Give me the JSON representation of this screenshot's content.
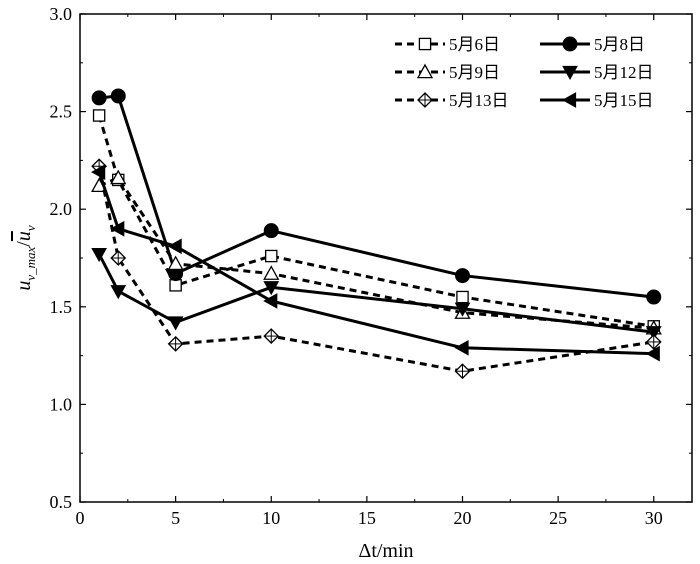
{
  "chart_data": {
    "type": "line",
    "xlabel": "Δt/min",
    "ylabel_parts": {
      "base": "u",
      "sub": "v_max",
      "bar_base": "u",
      "bar_sub": "v"
    },
    "xlim": [
      0,
      32
    ],
    "ylim": [
      0.5,
      3.0
    ],
    "xticks": [
      0,
      5,
      10,
      15,
      20,
      25,
      30
    ],
    "yticks": [
      0.5,
      1.0,
      1.5,
      2.0,
      2.5,
      3.0
    ],
    "ytick_labels": [
      "0.5",
      "1.0",
      "1.5",
      "2.0",
      "2.5",
      "3.0"
    ],
    "legend_position": "top-right",
    "series": [
      {
        "name": "5月6日",
        "marker": "square-open",
        "line": "dashed",
        "x": [
          1,
          2,
          5,
          10,
          20,
          30
        ],
        "y": [
          2.48,
          2.15,
          1.61,
          1.76,
          1.55,
          1.4
        ]
      },
      {
        "name": "5月8日",
        "marker": "circle-filled",
        "line": "solid",
        "x": [
          1,
          2,
          5,
          10,
          20,
          30
        ],
        "y": [
          2.57,
          2.58,
          1.67,
          1.89,
          1.66,
          1.55
        ]
      },
      {
        "name": "5月9日",
        "marker": "triangle-up-open",
        "line": "dashed",
        "x": [
          1,
          2,
          5,
          10,
          20,
          30
        ],
        "y": [
          2.12,
          2.16,
          1.72,
          1.67,
          1.47,
          1.39
        ]
      },
      {
        "name": "5月12日",
        "marker": "triangle-down-filled",
        "line": "solid",
        "x": [
          1,
          2,
          5,
          10,
          20,
          30
        ],
        "y": [
          1.77,
          1.58,
          1.42,
          1.6,
          1.49,
          1.37
        ]
      },
      {
        "name": "5月13日",
        "marker": "diamond-cross-open",
        "line": "dashed",
        "x": [
          1,
          2,
          5,
          10,
          20,
          30
        ],
        "y": [
          2.22,
          1.75,
          1.31,
          1.35,
          1.17,
          1.32
        ]
      },
      {
        "name": "5月15日",
        "marker": "triangle-left-filled",
        "line": "solid",
        "x": [
          1,
          2,
          5,
          10,
          20,
          30
        ],
        "y": [
          2.19,
          1.9,
          1.81,
          1.53,
          1.29,
          1.26
        ]
      }
    ]
  }
}
